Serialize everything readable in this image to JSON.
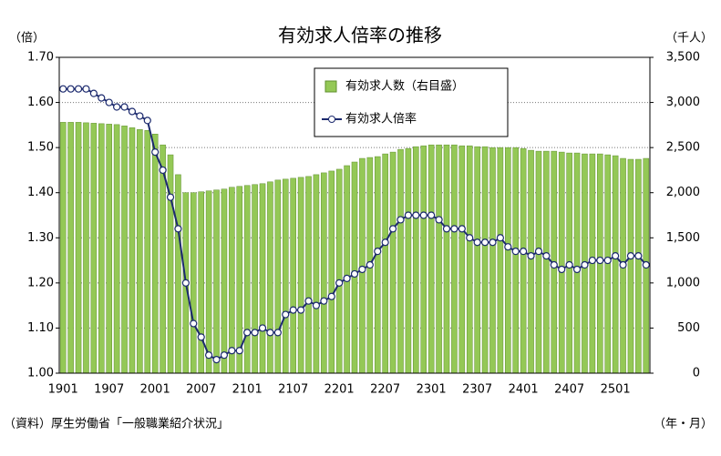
{
  "chart_data": {
    "type": "bar-line",
    "title": "有効求人倍率の推移",
    "y_label": "（倍）",
    "y2_label": "（千人）",
    "x_label": "（年・月）",
    "source": "（資料）厚生労働省「一般職業紹介状況」",
    "categories": [
      "1901",
      null,
      null,
      null,
      null,
      null,
      "1907",
      null,
      null,
      null,
      null,
      null,
      "2001",
      null,
      null,
      null,
      null,
      null,
      "2007",
      null,
      null,
      null,
      null,
      null,
      "2101",
      null,
      null,
      null,
      null,
      null,
      "2107",
      null,
      null,
      null,
      null,
      null,
      "2201",
      null,
      null,
      null,
      null,
      null,
      "2207",
      null,
      null,
      null,
      null,
      null,
      "2301",
      null,
      null,
      null,
      null,
      null,
      "2307",
      null,
      null,
      null,
      null,
      null,
      "2401",
      null,
      null,
      null,
      null,
      null,
      "2407",
      null,
      null,
      null,
      null,
      null,
      "2501",
      null,
      null,
      null,
      null
    ],
    "series": [
      {
        "name": "有効求人数（右目盛）",
        "type": "bar",
        "axis": "y2",
        "color": "#94c856",
        "values": [
          2780,
          2780,
          2780,
          2775,
          2770,
          2765,
          2760,
          2755,
          2740,
          2720,
          2700,
          2690,
          2650,
          2530,
          2420,
          2200,
          2000,
          2000,
          2010,
          2020,
          2030,
          2040,
          2060,
          2070,
          2080,
          2090,
          2100,
          2120,
          2140,
          2150,
          2160,
          2170,
          2180,
          2200,
          2220,
          2240,
          2260,
          2300,
          2340,
          2380,
          2390,
          2400,
          2430,
          2450,
          2480,
          2490,
          2510,
          2520,
          2530,
          2530,
          2530,
          2530,
          2520,
          2520,
          2510,
          2510,
          2500,
          2500,
          2500,
          2500,
          2490,
          2470,
          2460,
          2460,
          2460,
          2450,
          2440,
          2440,
          2430,
          2430,
          2430,
          2420,
          2410,
          2380,
          2370,
          2370,
          2380
        ]
      },
      {
        "name": "有効求人倍率",
        "type": "line",
        "axis": "y",
        "color": "#1c2a6e",
        "values": [
          1.63,
          1.63,
          1.63,
          1.63,
          1.62,
          1.61,
          1.6,
          1.59,
          1.59,
          1.58,
          1.57,
          1.56,
          1.49,
          1.45,
          1.39,
          1.32,
          1.2,
          1.11,
          1.08,
          1.04,
          1.03,
          1.04,
          1.05,
          1.05,
          1.09,
          1.09,
          1.1,
          1.09,
          1.09,
          1.13,
          1.14,
          1.14,
          1.16,
          1.15,
          1.16,
          1.17,
          1.2,
          1.21,
          1.22,
          1.23,
          1.24,
          1.27,
          1.29,
          1.32,
          1.34,
          1.35,
          1.35,
          1.35,
          1.35,
          1.34,
          1.32,
          1.32,
          1.32,
          1.3,
          1.29,
          1.29,
          1.29,
          1.3,
          1.28,
          1.27,
          1.27,
          1.26,
          1.27,
          1.26,
          1.24,
          1.23,
          1.24,
          1.23,
          1.24,
          1.25,
          1.25,
          1.25,
          1.26,
          1.24,
          1.26,
          1.26,
          1.24
        ]
      }
    ],
    "ylim": [
      1.0,
      1.7
    ],
    "yticks": [
      {
        "value": 1.0,
        "label": "1.00"
      },
      {
        "value": 1.1,
        "label": "1.10"
      },
      {
        "value": 1.2,
        "label": "1.20"
      },
      {
        "value": 1.3,
        "label": "1.30"
      },
      {
        "value": 1.4,
        "label": "1.40"
      },
      {
        "value": 1.5,
        "label": "1.50"
      },
      {
        "value": 1.6,
        "label": "1.60"
      },
      {
        "value": 1.7,
        "label": "1.70"
      }
    ],
    "y2lim": [
      0,
      3500
    ],
    "y2ticks": [
      0,
      500,
      {
        "value": 1000,
        "label": "1,000"
      },
      {
        "value": 1500,
        "label": "1,500"
      },
      {
        "value": 2000,
        "label": "2,000"
      },
      {
        "value": 2500,
        "label": "2,500"
      },
      {
        "value": 3000,
        "label": "3,000"
      },
      {
        "value": 3500,
        "label": "3,500"
      }
    ],
    "grid": true,
    "legend": "top"
  }
}
